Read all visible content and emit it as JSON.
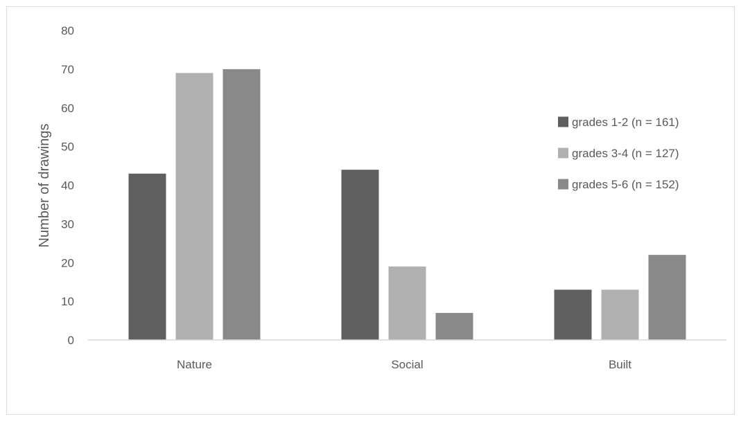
{
  "chart_data": {
    "type": "bar",
    "categories": [
      "Nature",
      "Social",
      "Built"
    ],
    "series": [
      {
        "name": "grades 1-2 (n = 161)",
        "values": [
          43,
          44,
          13
        ],
        "color": "#5f5f5f"
      },
      {
        "name": "grades 3-4 (n = 127)",
        "values": [
          69,
          19,
          13
        ],
        "color": "#b0b0b0"
      },
      {
        "name": "grades 5-6 (n = 152)",
        "values": [
          70,
          7,
          22
        ],
        "color": "#898989"
      }
    ],
    "title": "",
    "xlabel": "",
    "ylabel": "Number of drawings",
    "ylim": [
      0,
      80
    ],
    "yticks": [
      0,
      10,
      20,
      30,
      40,
      50,
      60,
      70,
      80
    ],
    "grid": false,
    "legend_position": "right",
    "colors": {
      "axis": "#d9d9d9",
      "text": "#595959",
      "frame": "#d9d9d9"
    }
  }
}
